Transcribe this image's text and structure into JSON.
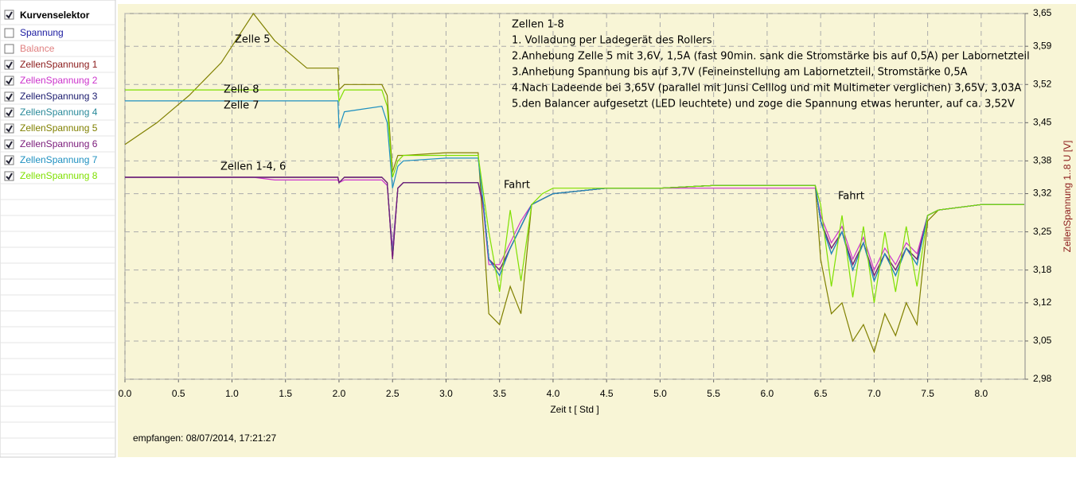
{
  "sidebar": {
    "title": "Kurvenselektor",
    "title_checked": true,
    "items": [
      {
        "label": "Spannung",
        "color": "#1a1aa0",
        "checked": false
      },
      {
        "label": "Balance",
        "color": "#e08080",
        "checked": false
      }
    ]
  },
  "chart_data": {
    "type": "line",
    "xlabel": "Zeit  t  [ Std ]",
    "ylabel": "ZellenSpannung 1..8  U  [V]",
    "xlim": [
      0,
      8.41
    ],
    "ylim": [
      2.98,
      3.65
    ],
    "grid": true,
    "y_axis_side": "right",
    "xticks": [
      {
        "value": 0,
        "label": "0.0"
      },
      0.5,
      {
        "value": 1,
        "label": "1.0"
      },
      1.5,
      {
        "value": 2,
        "label": "2.0"
      },
      2.5,
      {
        "value": 3,
        "label": "3.0"
      },
      3.5,
      {
        "value": 4,
        "label": "4.0"
      },
      4.5,
      {
        "value": 5,
        "label": "5.0"
      },
      5.5,
      {
        "value": 6,
        "label": "6.0"
      },
      6.5,
      {
        "value": 7,
        "label": "7.0"
      },
      7.5,
      {
        "value": 8,
        "label": "8.0"
      }
    ],
    "yticks": [
      {
        "value": 2.98,
        "label": "2,98"
      },
      {
        "value": 3.05,
        "label": "3,05"
      },
      {
        "value": 3.12,
        "label": "3,12"
      },
      {
        "value": 3.18,
        "label": "3,18"
      },
      {
        "value": 3.25,
        "label": "3,25"
      },
      {
        "value": 3.32,
        "label": "3,32"
      },
      {
        "value": 3.38,
        "label": "3,38"
      },
      {
        "value": 3.45,
        "label": "3,45"
      },
      {
        "value": 3.52,
        "label": "3,52"
      },
      {
        "value": 3.59,
        "label": "3,59"
      },
      {
        "value": 3.65,
        "label": "3,65"
      }
    ],
    "x": [
      0,
      0.3,
      0.6,
      0.9,
      1.2,
      1.4,
      1.7,
      1.99,
      2.0,
      2.05,
      2.4,
      2.45,
      2.5,
      2.55,
      2.6,
      3.0,
      3.3,
      3.35,
      3.4,
      3.5,
      3.6,
      3.7,
      3.8,
      3.9,
      4.0,
      4.5,
      5.0,
      5.5,
      6.0,
      6.45,
      6.5,
      6.6,
      6.7,
      6.8,
      6.9,
      7.0,
      7.1,
      7.2,
      7.3,
      7.4,
      7.5,
      7.6,
      8.0,
      8.4
    ],
    "series": [
      {
        "name": "ZellenSpannung 1",
        "color": "#8b1a1a",
        "checked": true,
        "values": [
          3.35,
          3.35,
          3.35,
          3.35,
          3.35,
          3.35,
          3.35,
          3.35,
          3.34,
          3.35,
          3.35,
          3.34,
          3.21,
          3.33,
          3.34,
          3.34,
          3.34,
          3.3,
          3.2,
          3.18,
          3.22,
          3.26,
          3.3,
          3.31,
          3.32,
          3.33,
          3.33,
          3.335,
          3.335,
          3.335,
          3.27,
          3.22,
          3.25,
          3.19,
          3.23,
          3.17,
          3.21,
          3.18,
          3.22,
          3.2,
          3.28,
          3.29,
          3.3,
          3.3
        ]
      },
      {
        "name": "ZellenSpannung 2",
        "color": "#cc33cc",
        "checked": true,
        "values": [
          3.35,
          3.35,
          3.35,
          3.35,
          3.35,
          3.345,
          3.345,
          3.345,
          3.34,
          3.345,
          3.345,
          3.335,
          3.22,
          3.33,
          3.34,
          3.34,
          3.34,
          3.29,
          3.19,
          3.19,
          3.23,
          3.27,
          3.3,
          3.31,
          3.32,
          3.33,
          3.33,
          3.33,
          3.33,
          3.33,
          3.28,
          3.23,
          3.26,
          3.2,
          3.24,
          3.18,
          3.22,
          3.19,
          3.23,
          3.21,
          3.28,
          3.29,
          3.3,
          3.3
        ]
      },
      {
        "name": "ZellenSpannung 3",
        "color": "#1a1a6e",
        "checked": true,
        "values": [
          3.35,
          3.35,
          3.35,
          3.35,
          3.35,
          3.35,
          3.35,
          3.35,
          3.34,
          3.35,
          3.35,
          3.34,
          3.2,
          3.33,
          3.34,
          3.34,
          3.34,
          3.3,
          3.2,
          3.17,
          3.22,
          3.26,
          3.3,
          3.31,
          3.32,
          3.33,
          3.33,
          3.335,
          3.335,
          3.335,
          3.27,
          3.21,
          3.25,
          3.18,
          3.23,
          3.16,
          3.21,
          3.17,
          3.22,
          3.19,
          3.28,
          3.29,
          3.3,
          3.3
        ]
      },
      {
        "name": "ZellenSpannung 4",
        "color": "#2a8a9a",
        "checked": true,
        "values": [
          3.35,
          3.35,
          3.35,
          3.35,
          3.35,
          3.35,
          3.35,
          3.35,
          3.34,
          3.35,
          3.35,
          3.34,
          3.21,
          3.33,
          3.34,
          3.34,
          3.34,
          3.3,
          3.2,
          3.18,
          3.22,
          3.26,
          3.3,
          3.31,
          3.32,
          3.33,
          3.33,
          3.335,
          3.335,
          3.335,
          3.27,
          3.22,
          3.25,
          3.19,
          3.23,
          3.17,
          3.21,
          3.18,
          3.22,
          3.2,
          3.28,
          3.29,
          3.3,
          3.3
        ]
      },
      {
        "name": "ZellenSpannung 5",
        "color": "#808000",
        "checked": true,
        "values": [
          3.41,
          3.45,
          3.5,
          3.56,
          3.65,
          3.6,
          3.55,
          3.55,
          3.51,
          3.52,
          3.52,
          3.5,
          3.36,
          3.39,
          3.39,
          3.395,
          3.395,
          3.25,
          3.1,
          3.08,
          3.15,
          3.1,
          3.3,
          3.31,
          3.32,
          3.33,
          3.33,
          3.335,
          3.335,
          3.335,
          3.2,
          3.1,
          3.12,
          3.05,
          3.08,
          3.03,
          3.1,
          3.06,
          3.12,
          3.08,
          3.27,
          3.29,
          3.3,
          3.3
        ]
      },
      {
        "name": "ZellenSpannung 6",
        "color": "#7a1a7a",
        "checked": true,
        "values": [
          3.35,
          3.35,
          3.35,
          3.35,
          3.35,
          3.35,
          3.35,
          3.35,
          3.34,
          3.35,
          3.35,
          3.34,
          3.2,
          3.33,
          3.34,
          3.34,
          3.34,
          3.3,
          3.2,
          3.18,
          3.22,
          3.26,
          3.3,
          3.31,
          3.32,
          3.33,
          3.33,
          3.335,
          3.335,
          3.335,
          3.27,
          3.22,
          3.25,
          3.19,
          3.23,
          3.17,
          3.21,
          3.18,
          3.22,
          3.2,
          3.28,
          3.29,
          3.3,
          3.3
        ]
      },
      {
        "name": "ZellenSpannung 7",
        "color": "#1e90c0",
        "checked": true,
        "values": [
          3.49,
          3.49,
          3.49,
          3.49,
          3.49,
          3.49,
          3.49,
          3.49,
          3.44,
          3.47,
          3.48,
          3.45,
          3.33,
          3.37,
          3.38,
          3.385,
          3.385,
          3.3,
          3.2,
          3.17,
          3.22,
          3.26,
          3.3,
          3.31,
          3.32,
          3.33,
          3.33,
          3.335,
          3.335,
          3.335,
          3.27,
          3.21,
          3.25,
          3.18,
          3.23,
          3.16,
          3.21,
          3.17,
          3.22,
          3.19,
          3.28,
          3.29,
          3.3,
          3.3
        ]
      },
      {
        "name": "ZellenSpannung 8",
        "color": "#7fe000",
        "checked": true,
        "values": [
          3.51,
          3.51,
          3.51,
          3.51,
          3.51,
          3.51,
          3.51,
          3.51,
          3.49,
          3.51,
          3.51,
          3.48,
          3.35,
          3.38,
          3.39,
          3.39,
          3.39,
          3.32,
          3.25,
          3.14,
          3.29,
          3.16,
          3.3,
          3.32,
          3.33,
          3.33,
          3.33,
          3.335,
          3.335,
          3.335,
          3.3,
          3.15,
          3.28,
          3.13,
          3.26,
          3.12,
          3.25,
          3.14,
          3.26,
          3.15,
          3.28,
          3.29,
          3.3,
          3.3
        ]
      }
    ],
    "annotations": [
      "Zelle 5",
      "Zelle 8",
      "Zelle 7",
      "Zellen 1-4, 6",
      "Fahrt",
      "Fahrt"
    ],
    "notes": [
      "Zellen 1-8",
      "1. Volladung per Ladegerät des Rollers",
      "2.Anhebung Zelle 5 mit 3,6V, 1,5A (fast 90min. sank die Stromstärke bis auf 0,5A) per Labornetzteil",
      "3.Anhebung Spannung bis auf 3,7V (Feineinstellung am Labornetzteil, Stromstärke 0,5A",
      "4.Nach Ladeende bei 3,65V (parallel mit Junsi Celllog und mit Multimeter verglichen) 3,65V, 3,03A",
      "5.den Balancer aufgesetzt (LED leuchtete) und zoge die Spannung etwas herunter, auf ca. 3,52V"
    ]
  },
  "footer": "empfangen: 08/07/2014, 17:21:27"
}
